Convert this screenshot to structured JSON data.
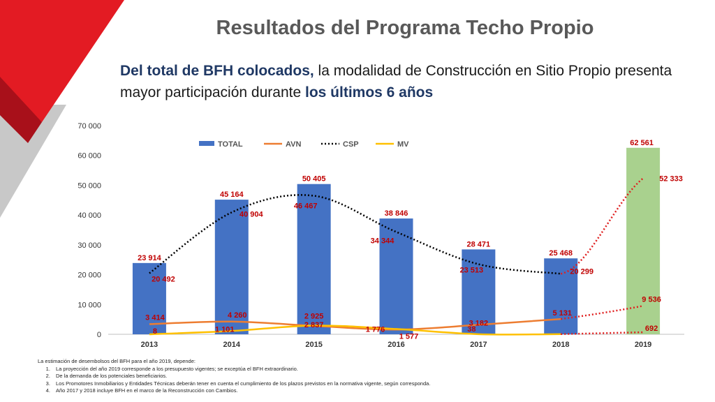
{
  "slide": {
    "title": "Resultados del Programa Techo Propio",
    "subtitle_part1": "Del total de BFH colocados,",
    "subtitle_part2": " la modalidad de Construcción en Sitio Propio presenta mayor participación durante ",
    "subtitle_part3": "los últimos 6 años"
  },
  "colors": {
    "red": "#e31b23",
    "dark_red": "#a8101a",
    "gray": "#c8c8c8",
    "bar": "#4472c4",
    "bar_2019": "#a9d18e",
    "avn": "#ed7d31",
    "csp": "#000000",
    "mv": "#ffc000",
    "projection": "#e02020",
    "label_red": "#c00000"
  },
  "chart_data": {
    "type": "bar",
    "categories": [
      "2013",
      "2014",
      "2015",
      "2016",
      "2017",
      "2018",
      "2019"
    ],
    "ylim": [
      0,
      70000
    ],
    "yticks": [
      "0",
      "10 000",
      "20 000",
      "30 000",
      "40 000",
      "50 000",
      "60 000",
      "70 000"
    ],
    "legend_position": "top",
    "series": [
      {
        "name": "TOTAL",
        "type": "bar",
        "values": [
          23914,
          45164,
          50405,
          38846,
          28471,
          25468,
          62561
        ],
        "labels": [
          "23 914",
          "45 164",
          "50 405",
          "38 846",
          "28 471",
          "25 468",
          "62 561"
        ]
      },
      {
        "name": "AVN",
        "type": "line",
        "values": [
          3414,
          4260,
          2837,
          1577,
          3182,
          5131,
          9536
        ],
        "labels": [
          "3 414",
          "4 260",
          "2 837",
          "1 577",
          "3 182",
          "5 131",
          "9 536"
        ]
      },
      {
        "name": "CSP",
        "type": "line-dotted",
        "values": [
          20492,
          40904,
          46467,
          34344,
          23513,
          20299,
          52333
        ],
        "labels": [
          "20 492",
          "40 904",
          "46 467",
          "34 344",
          "23 513",
          "20 299",
          "52 333"
        ]
      },
      {
        "name": "MV",
        "type": "line",
        "values": [
          8,
          1101,
          2925,
          1776,
          38,
          null,
          692
        ],
        "labels": [
          "8",
          "1 101",
          "2 925",
          "1 776",
          "38",
          "",
          "692"
        ]
      }
    ]
  },
  "notes": {
    "intro": "La estimación de desembolsos del BFH para el año 2019, depende:",
    "items": [
      "La proyección del año 2019 corresponde a los presupuesto vigentes; se exceptúa el BFH extraordinario.",
      "De la demanda de los potenciales beneficiarios.",
      "Los Promotores Inmobiliarios y Entidades Técnicas deberán tener en cuenta el cumplimiento de los plazos previstos en la normativa vigente, según corresponda.",
      "Año 2017 y 2018 incluye BFH en el marco de la Reconstrucción con Cambios."
    ]
  }
}
